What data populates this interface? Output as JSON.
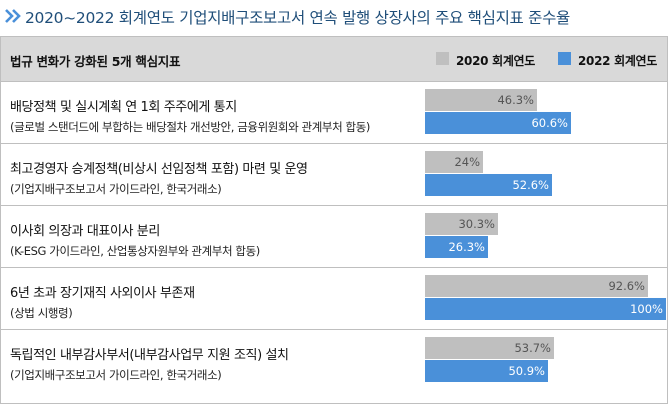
{
  "title": "2020~2022 회계연도 기업지배구조보고서 연속 발행 상장사의 주요 핵심지표 준수율",
  "header": {
    "label": "법규 변화가 강화된 5개 핵심지표"
  },
  "colors": {
    "title": "#1f4e79",
    "series_2020": "#bfbfbf",
    "series_2022": "#4a90d9",
    "header_bg": "#d9d9d9"
  },
  "legend": {
    "items": [
      {
        "label": "2020 회계연도",
        "color": "#bfbfbf"
      },
      {
        "label": "2022 회계연도",
        "color": "#4a90d9"
      }
    ]
  },
  "rows": [
    {
      "label": "배당정책 및 실시계획 연 1회 주주에게 통지",
      "source": "(글로벌 스탠더드에 부합하는 배당절차 개선방안, 금융위원회와 관계부처 합동)",
      "v2020": "46.3%",
      "v2022": "60.6%"
    },
    {
      "label": "최고경영자 승계정책(비상시 선임정책 포함) 마련 및 운영",
      "source": "(기업지배구조보고서 가이드라인, 한국거래소)",
      "v2020": "24%",
      "v2022": "52.6%"
    },
    {
      "label": "이사회 의장과 대표이사 분리",
      "source": "(K-ESG 가이드라인, 산업통상자원부와 관계부처 합동)",
      "v2020": "30.3%",
      "v2022": "26.3%"
    },
    {
      "label": "6년 초과 장기재직 사외이사 부존재",
      "source": "(상법 시행령)",
      "v2020": "92.6%",
      "v2022": "100%"
    },
    {
      "label": "독립적인 내부감사부서(내부감사업무 지원 조직) 설치",
      "source": "(기업지배구조보고서 가이드라인, 한국거래소)",
      "v2020": "53.7%",
      "v2022": "50.9%"
    }
  ],
  "chart_data": {
    "type": "bar",
    "orientation": "horizontal",
    "title": "2020~2022 회계연도 기업지배구조보고서 연속 발행 상장사의 주요 핵심지표 준수율",
    "categories": [
      "배당정책 및 실시계획 연 1회 주주에게 통지",
      "최고경영자 승계정책(비상시 선임정책 포함) 마련 및 운영",
      "이사회 의장과 대표이사 분리",
      "6년 초과 장기재직 사외이사 부존재",
      "독립적인 내부감사부서(내부감사업무 지원 조직) 설치"
    ],
    "series": [
      {
        "name": "2020 회계연도",
        "values": [
          46.3,
          24,
          30.3,
          92.6,
          53.7
        ],
        "color": "#bfbfbf"
      },
      {
        "name": "2022 회계연도",
        "values": [
          60.6,
          52.6,
          26.3,
          100,
          50.9
        ],
        "color": "#4a90d9"
      }
    ],
    "xlim": [
      0,
      100
    ],
    "legend_position": "top-right",
    "grid": false
  }
}
